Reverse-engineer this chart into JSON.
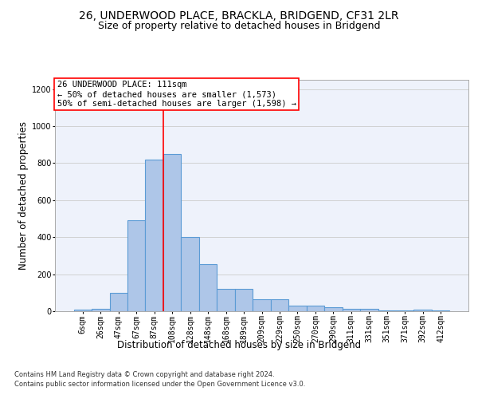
{
  "title_line1": "26, UNDERWOOD PLACE, BRACKLA, BRIDGEND, CF31 2LR",
  "title_line2": "Size of property relative to detached houses in Bridgend",
  "xlabel": "Distribution of detached houses by size in Bridgend",
  "ylabel": "Number of detached properties",
  "footer_line1": "Contains HM Land Registry data © Crown copyright and database right 2024.",
  "footer_line2": "Contains public sector information licensed under the Open Government Licence v3.0.",
  "annotation_line1": "26 UNDERWOOD PLACE: 111sqm",
  "annotation_line2": "← 50% of detached houses are smaller (1,573)",
  "annotation_line3": "50% of semi-detached houses are larger (1,598) →",
  "bar_labels": [
    "6sqm",
    "26sqm",
    "47sqm",
    "67sqm",
    "87sqm",
    "108sqm",
    "128sqm",
    "148sqm",
    "168sqm",
    "189sqm",
    "209sqm",
    "229sqm",
    "250sqm",
    "270sqm",
    "290sqm",
    "311sqm",
    "331sqm",
    "351sqm",
    "371sqm",
    "392sqm",
    "412sqm"
  ],
  "bar_heights": [
    10,
    15,
    100,
    490,
    820,
    850,
    400,
    255,
    120,
    120,
    65,
    65,
    30,
    30,
    20,
    15,
    15,
    5,
    5,
    10,
    5
  ],
  "bar_color": "#aec6e8",
  "bar_edge_color": "#5b9bd5",
  "vline_index": 5,
  "vline_color": "red",
  "annotation_box_color": "red",
  "ylim": [
    0,
    1250
  ],
  "yticks": [
    0,
    200,
    400,
    600,
    800,
    1000,
    1200
  ],
  "bg_color": "#eef2fb",
  "grid_color": "#cccccc",
  "title_fontsize": 10,
  "subtitle_fontsize": 9,
  "axis_label_fontsize": 8.5,
  "tick_fontsize": 7,
  "annotation_fontsize": 7.5,
  "footer_fontsize": 6
}
